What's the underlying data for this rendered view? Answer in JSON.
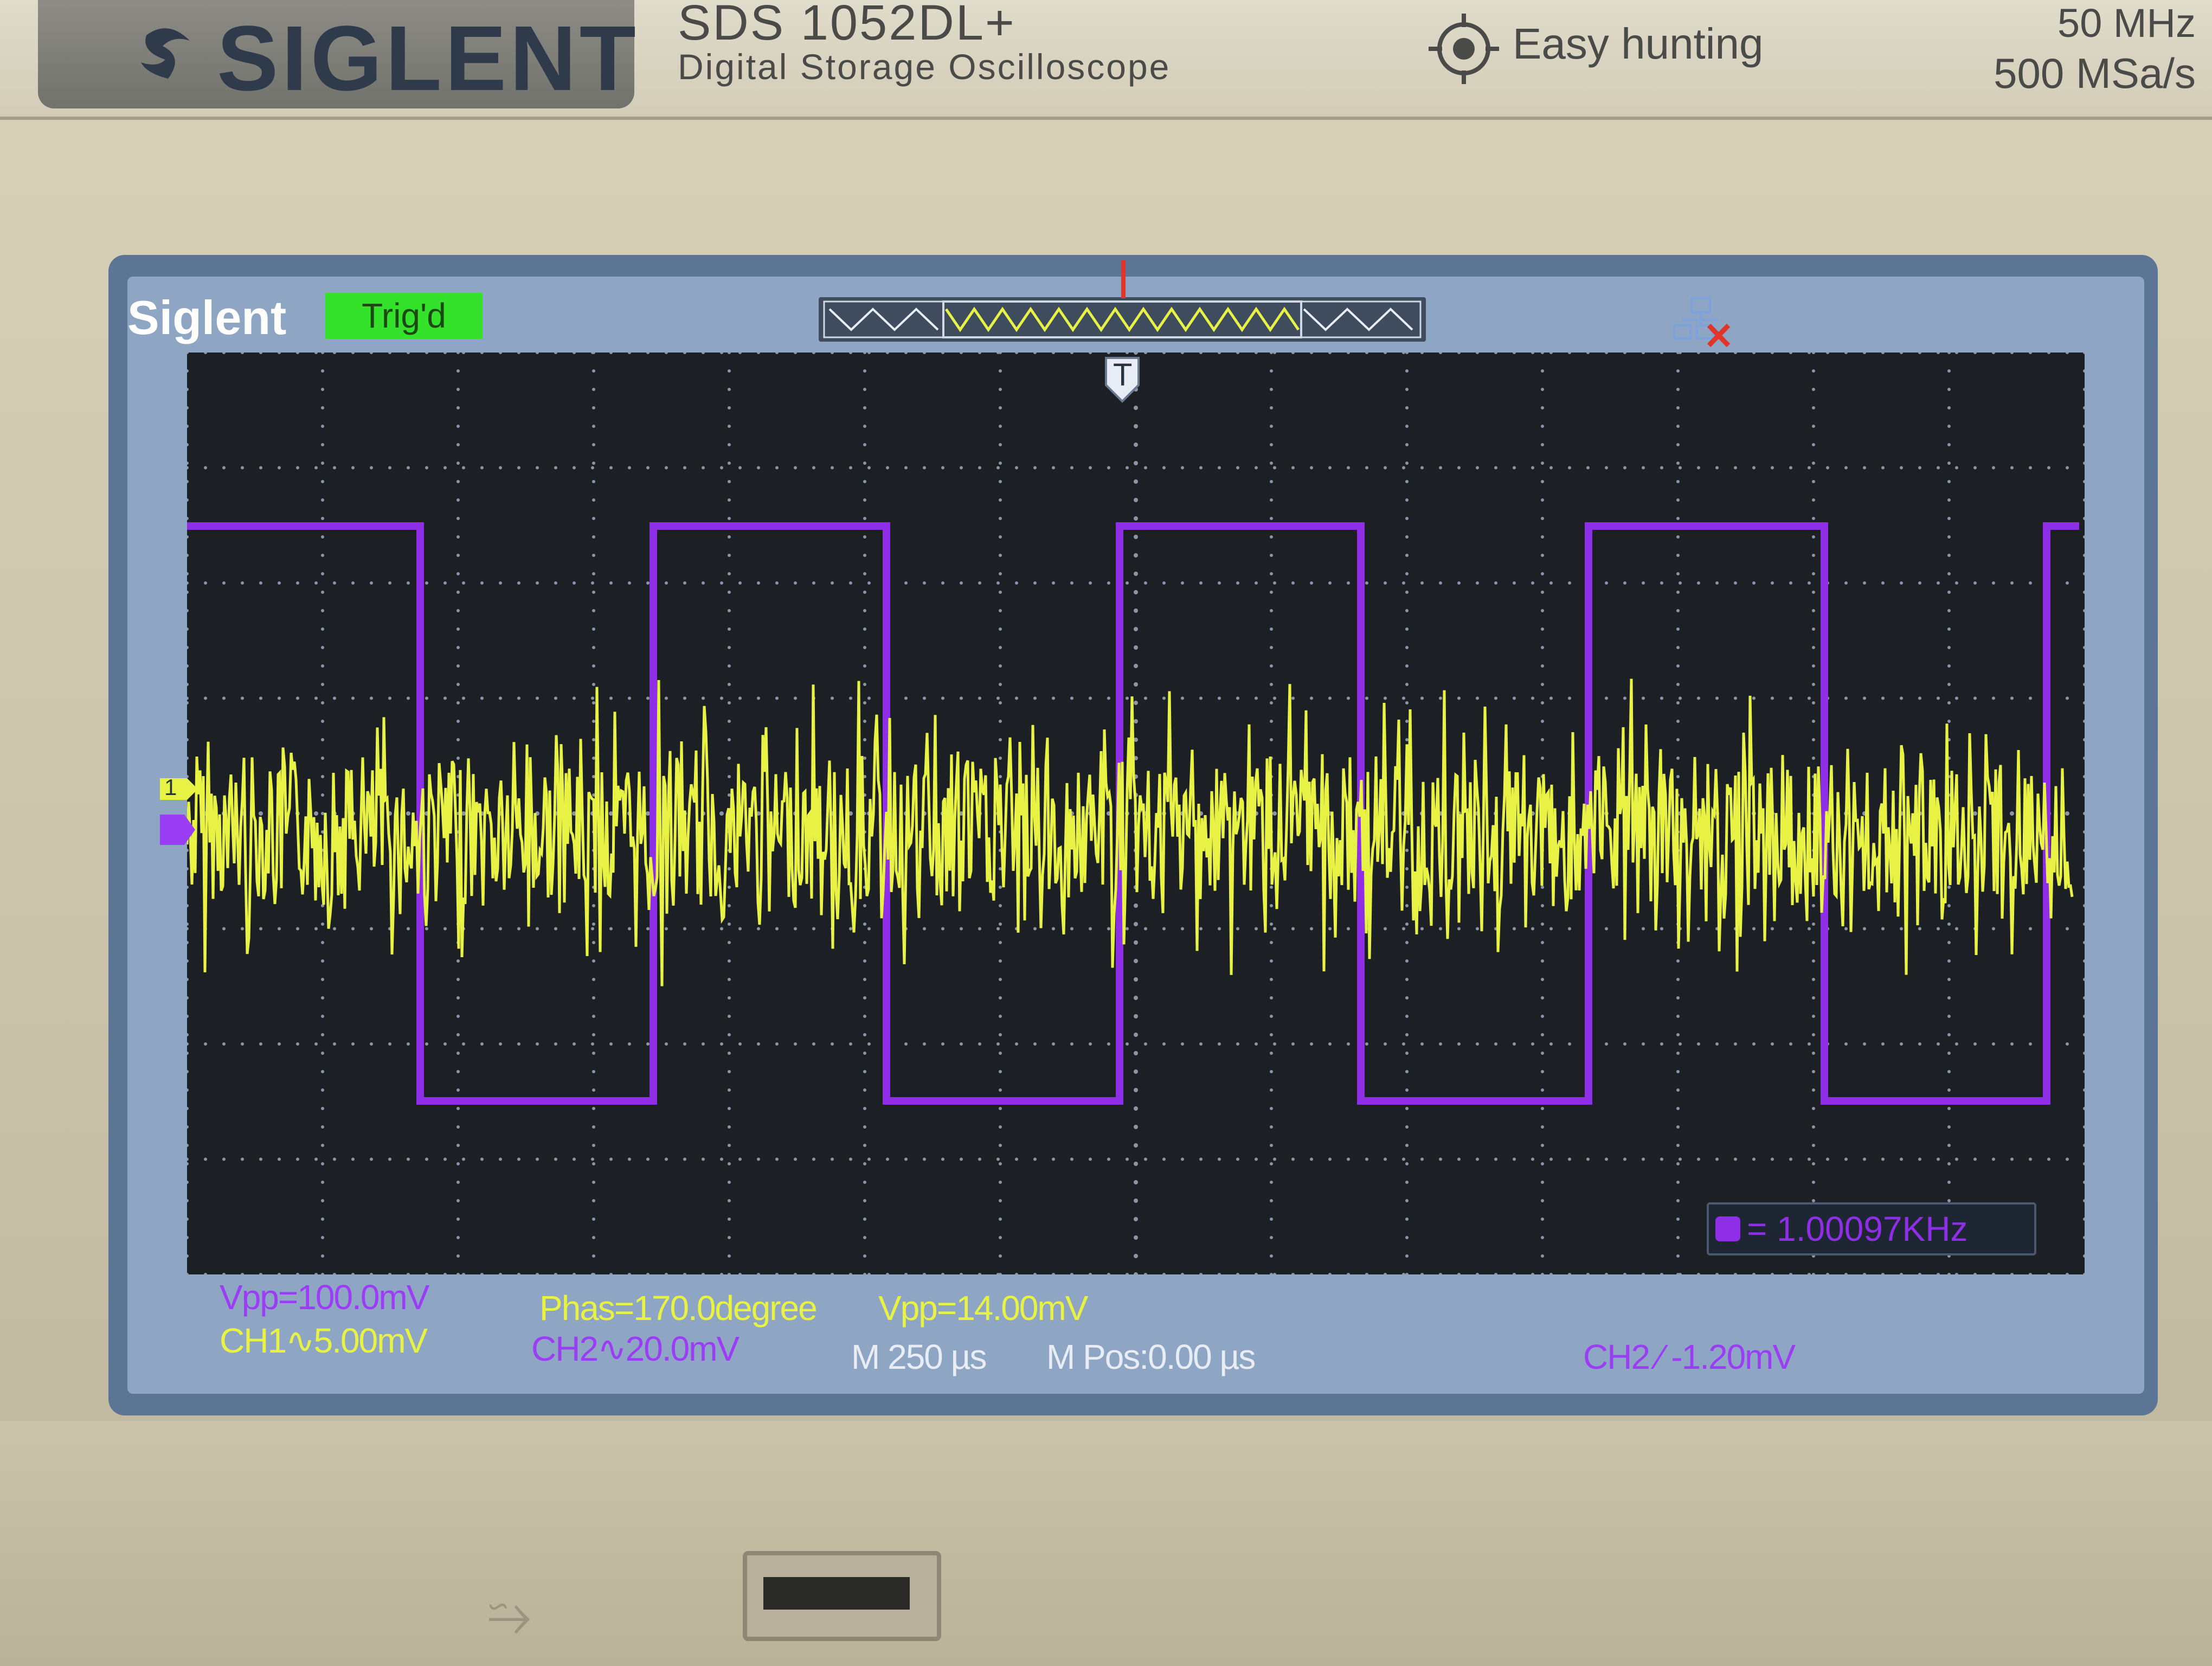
{
  "panel": {
    "brand_logo": "SIGLENT",
    "model": "SDS 1052DL+",
    "subtitle": "Digital Storage Oscilloscope",
    "feature": "Easy hunting",
    "bandwidth": "50 MHz",
    "sample_rate": "500 MSa/s"
  },
  "screen": {
    "brand": "Siglent",
    "trigger_status": "Trig'd",
    "trigger_marker": "T",
    "ch1_marker": "1"
  },
  "measurements": {
    "ch2_vpp": "Vpp=100.0mV",
    "phase": "Phas=170.0degree",
    "ch1_vpp": "Vpp=14.00mV",
    "ch1_scale": "CH1∿5.00mV",
    "ch2_scale": "CH2∿20.0mV",
    "timebase": "M 250 µs",
    "position": "M Pos:0.00 µs",
    "trigger_level": "CH2 ⁄ -1.20mV",
    "frequency": "= 1.00097KHz"
  },
  "colors": {
    "ch1": "#e7f245",
    "ch2": "#9b3df5",
    "trig_ok": "#35e22b"
  }
}
